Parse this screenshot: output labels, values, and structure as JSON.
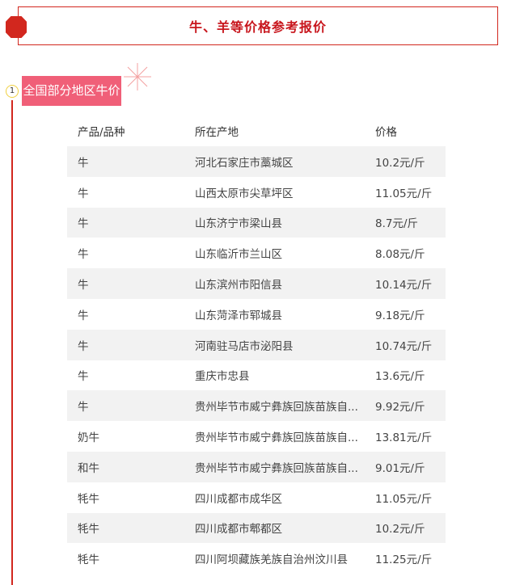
{
  "header": {
    "title": "牛、羊等价格参考报价",
    "accent": "#d2271e"
  },
  "section": {
    "number": "1",
    "title": "全国部分地区牛价",
    "badge_color": "#f05f78"
  },
  "table": {
    "columns": [
      "产品/品种",
      "所在产地",
      "价格"
    ],
    "rows": [
      [
        "牛",
        "河北石家庄市藁城区",
        "10.2元/斤"
      ],
      [
        "牛",
        "山西太原市尖草坪区",
        "11.05元/斤"
      ],
      [
        "牛",
        "山东济宁市梁山县",
        "8.7元/斤"
      ],
      [
        "牛",
        "山东临沂市兰山区",
        "8.08元/斤"
      ],
      [
        "牛",
        "山东滨州市阳信县",
        "10.14元/斤"
      ],
      [
        "牛",
        "山东菏泽市郓城县",
        "9.18元/斤"
      ],
      [
        "牛",
        "河南驻马店市泌阳县",
        "10.74元/斤"
      ],
      [
        "牛",
        "重庆市忠县",
        "13.6元/斤"
      ],
      [
        "牛",
        "贵州毕节市威宁彝族回族苗族自...",
        "9.92元/斤"
      ],
      [
        "奶牛",
        "贵州毕节市威宁彝族回族苗族自...",
        "13.81元/斤"
      ],
      [
        "和牛",
        "贵州毕节市威宁彝族回族苗族自...",
        "9.01元/斤"
      ],
      [
        "牦牛",
        "四川成都市成华区",
        "11.05元/斤"
      ],
      [
        "牦牛",
        "四川成都市郫都区",
        "10.2元/斤"
      ],
      [
        "牦牛",
        "四川阿坝藏族羌族自治州汶川县",
        "11.25元/斤"
      ]
    ]
  }
}
